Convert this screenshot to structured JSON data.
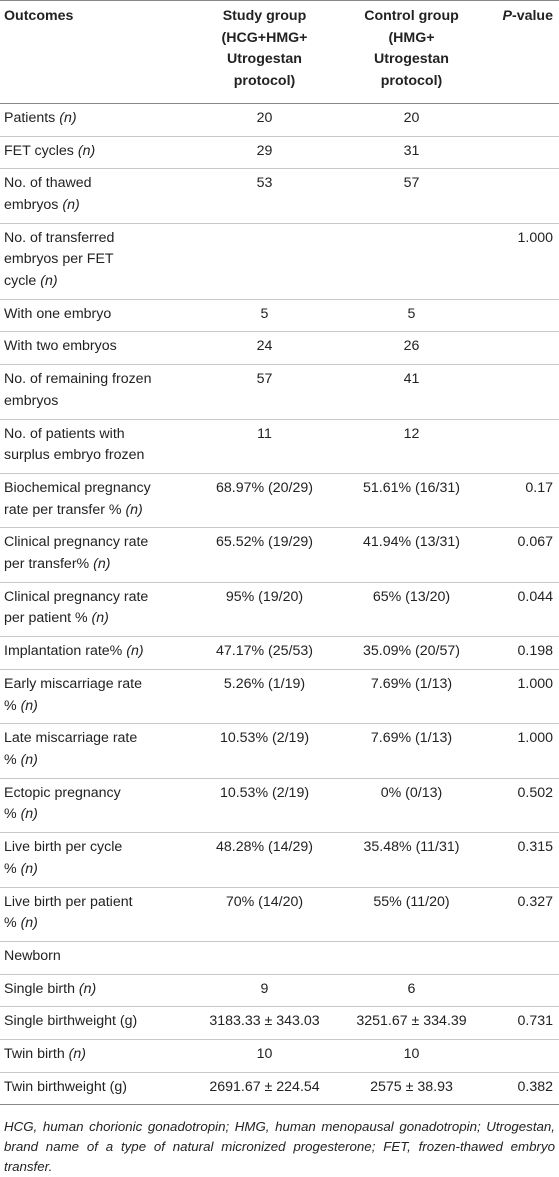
{
  "table": {
    "headers": {
      "outcomes": "Outcomes",
      "study_lines": [
        "Study group",
        "(HCG+HMG+",
        "Utrogestan",
        "protocol)"
      ],
      "control_lines": [
        "Control group",
        "(HMG+",
        "Utrogestan",
        "protocol)"
      ],
      "p_italic": "P",
      "p_rest": "-value"
    },
    "rows": [
      {
        "lines": [
          {
            "text": "Patients ",
            "n": "(n)"
          }
        ],
        "study": "20",
        "control": "20",
        "p": ""
      },
      {
        "lines": [
          {
            "text": "FET cycles ",
            "n": "(n)"
          }
        ],
        "study": "29",
        "control": "31",
        "p": ""
      },
      {
        "lines": [
          {
            "text": "No. of thawed",
            "n": ""
          },
          {
            "text": "embryos ",
            "n": "(n)"
          }
        ],
        "study": "53",
        "control": "57",
        "p": ""
      },
      {
        "lines": [
          {
            "text": "No. of transferred",
            "n": ""
          },
          {
            "text": "embryos per FET",
            "n": ""
          },
          {
            "text": "cycle ",
            "n": "(n)"
          }
        ],
        "study": "",
        "control": "",
        "p": "1.000"
      },
      {
        "lines": [
          {
            "text": "With one embryo",
            "n": ""
          }
        ],
        "study": "5",
        "control": "5",
        "p": ""
      },
      {
        "lines": [
          {
            "text": "With two embryos",
            "n": ""
          }
        ],
        "study": "24",
        "control": "26",
        "p": ""
      },
      {
        "lines": [
          {
            "text": "No. of remaining frozen",
            "n": ""
          },
          {
            "text": "embryos",
            "n": ""
          }
        ],
        "study": "57",
        "control": "41",
        "p": ""
      },
      {
        "lines": [
          {
            "text": "No. of patients with",
            "n": ""
          },
          {
            "text": "surplus embryo frozen",
            "n": ""
          }
        ],
        "study": "11",
        "control": "12",
        "p": ""
      },
      {
        "lines": [
          {
            "text": "Biochemical pregnancy",
            "n": ""
          },
          {
            "text": "rate per transfer % ",
            "n": "(n)"
          }
        ],
        "study": "68.97% (20/29)",
        "control": "51.61% (16/31)",
        "p": "0.17"
      },
      {
        "lines": [
          {
            "text": "Clinical pregnancy rate",
            "n": ""
          },
          {
            "text": "per transfer% ",
            "n": "(n)"
          }
        ],
        "study": "65.52% (19/29)",
        "control": "41.94% (13/31)",
        "p": "0.067"
      },
      {
        "lines": [
          {
            "text": "Clinical pregnancy rate",
            "n": ""
          },
          {
            "text": "per patient % ",
            "n": "(n)"
          }
        ],
        "study": "95% (19/20)",
        "control": "65% (13/20)",
        "p": "0.044"
      },
      {
        "lines": [
          {
            "text": "Implantation rate% ",
            "n": "(n)"
          }
        ],
        "study": "47.17% (25/53)",
        "control": "35.09% (20/57)",
        "p": "0.198"
      },
      {
        "lines": [
          {
            "text": "Early miscarriage rate",
            "n": ""
          },
          {
            "text": "% ",
            "n": "(n)"
          }
        ],
        "study": "5.26% (1/19)",
        "control": "7.69% (1/13)",
        "p": "1.000"
      },
      {
        "lines": [
          {
            "text": "Late miscarriage rate",
            "n": ""
          },
          {
            "text": "% ",
            "n": "(n)"
          }
        ],
        "study": "10.53% (2/19)",
        "control": "7.69% (1/13)",
        "p": "1.000"
      },
      {
        "lines": [
          {
            "text": "Ectopic pregnancy",
            "n": ""
          },
          {
            "text": "% ",
            "n": "(n)"
          }
        ],
        "study": "10.53% (2/19)",
        "control": "0% (0/13)",
        "p": "0.502"
      },
      {
        "lines": [
          {
            "text": "Live birth per cycle",
            "n": ""
          },
          {
            "text": "% ",
            "n": "(n)"
          }
        ],
        "study": "48.28% (14/29)",
        "control": "35.48% (11/31)",
        "p": "0.315"
      },
      {
        "lines": [
          {
            "text": "Live birth per patient",
            "n": ""
          },
          {
            "text": "% ",
            "n": "(n)"
          }
        ],
        "study": "70% (14/20)",
        "control": "55% (11/20)",
        "p": "0.327"
      },
      {
        "lines": [
          {
            "text": "Newborn",
            "n": ""
          }
        ],
        "study": "",
        "control": "",
        "p": ""
      },
      {
        "lines": [
          {
            "text": "Single birth ",
            "n": "(n)"
          }
        ],
        "study": "9",
        "control": "6",
        "p": ""
      },
      {
        "lines": [
          {
            "text": "Single birthweight (g)",
            "n": ""
          }
        ],
        "study": "3183.33 ± 343.03",
        "control": "3251.67 ± 334.39",
        "p": "0.731"
      },
      {
        "lines": [
          {
            "text": "Twin birth ",
            "n": "(n)"
          }
        ],
        "study": "10",
        "control": "10",
        "p": ""
      },
      {
        "lines": [
          {
            "text": "Twin birthweight (g)",
            "n": ""
          }
        ],
        "study": "2691.67 ± 224.54",
        "control": "2575 ± 38.93",
        "p": "0.382"
      }
    ]
  },
  "footnote": "HCG, human chorionic gonadotropin; HMG, human menopausal gonadotropin; Utrogestan, brand name of a type of natural micronized progesterone; FET, frozen-thawed embryo transfer."
}
